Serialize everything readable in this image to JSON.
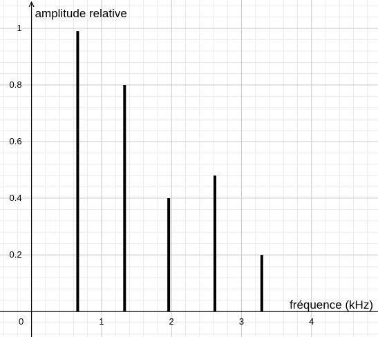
{
  "chart_data": {
    "type": "bar",
    "title": "",
    "xlabel": "fréquence (kHz)",
    "ylabel": "amplitude relative",
    "x": [
      0.66,
      1.33,
      1.96,
      2.62,
      3.29
    ],
    "values": [
      0.99,
      0.8,
      0.4,
      0.48,
      0.2
    ],
    "xlim": [
      -0.45,
      4.95
    ],
    "ylim": [
      -0.09,
      1.1
    ],
    "x_ticks": [
      1,
      2,
      3,
      4
    ],
    "y_ticks": [
      0.2,
      0.4,
      0.6,
      0.8,
      1
    ],
    "x_tick_labels": [
      "1",
      "2",
      "3",
      "4"
    ],
    "y_tick_labels": [
      "0.2",
      "0.4",
      "0.6",
      "0.8",
      "1"
    ],
    "origin_label": "0",
    "grid": true,
    "minor_grid_divisions": 5,
    "colors": {
      "bar": "#000000",
      "axis": "#000000",
      "grid_major": "#c8c8c8",
      "grid_minor": "#ebebeb"
    }
  }
}
